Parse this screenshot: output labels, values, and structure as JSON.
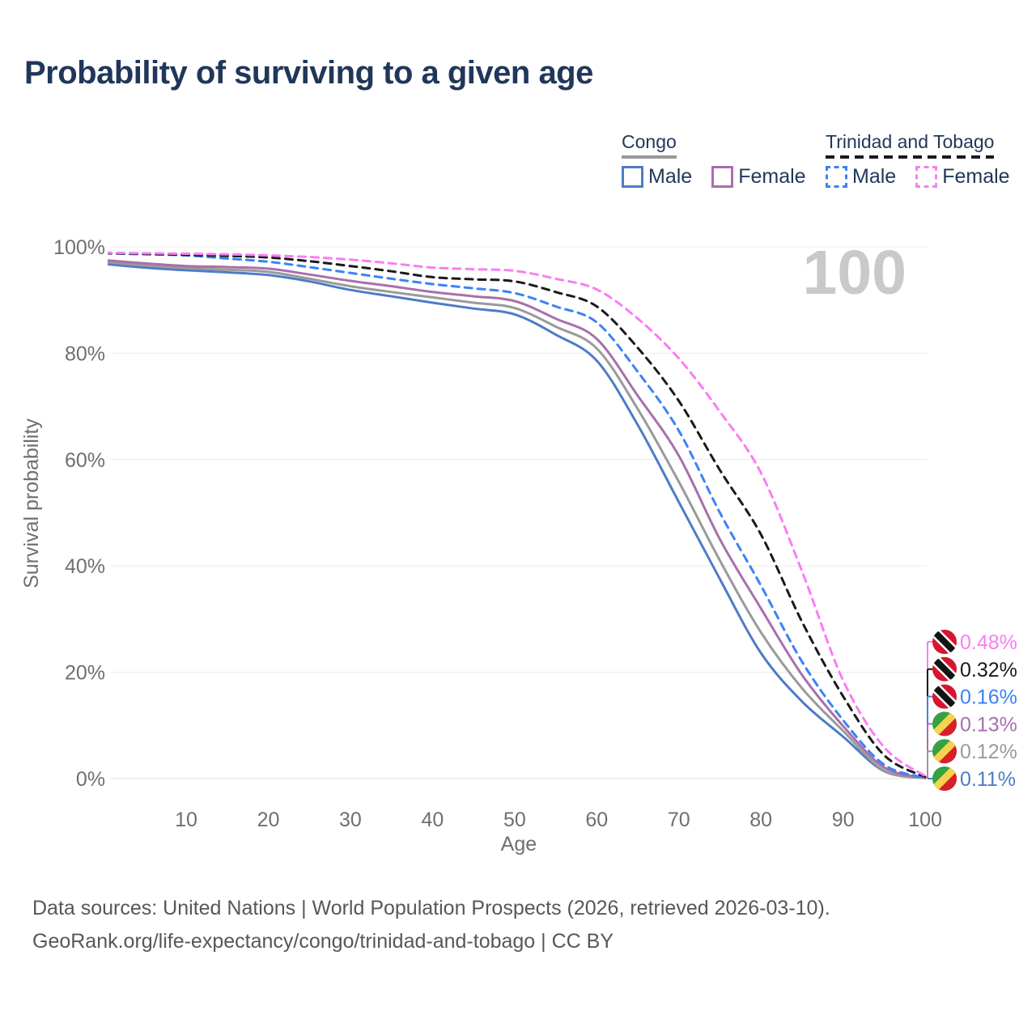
{
  "title": "Probability of surviving to a given age",
  "watermark": "100",
  "legend": {
    "groups": [
      {
        "name": "Congo",
        "line_style": "solid",
        "underline_color": "#9a9a9a",
        "items": [
          {
            "label": "Male",
            "color": "#4d7cc7"
          },
          {
            "label": "Female",
            "color": "#a86fae"
          }
        ]
      },
      {
        "name": "Trinidad and Tobago",
        "line_style": "dashed",
        "underline_color": "#1a1a1a",
        "items": [
          {
            "label": "Male",
            "color": "#3b82f6"
          },
          {
            "label": "Female",
            "color": "#fa7df2"
          }
        ]
      }
    ]
  },
  "axes": {
    "y_label": "Survival probability",
    "y_ticks": [
      "100%",
      "80%",
      "60%",
      "40%",
      "20%",
      "0%"
    ],
    "x_label": "Age",
    "x_ticks": [
      "10",
      "20",
      "30",
      "40",
      "50",
      "60",
      "70",
      "80",
      "90",
      "100"
    ],
    "x_tick_values": [
      10,
      20,
      30,
      40,
      50,
      60,
      70,
      80,
      90,
      100
    ]
  },
  "end_labels": [
    {
      "value": "0.48%",
      "color": "#fa7df2",
      "flag": "trinidad-and-tobago"
    },
    {
      "value": "0.32%",
      "color": "#1a1a1a",
      "flag": "trinidad-and-tobago"
    },
    {
      "value": "0.16%",
      "color": "#3b82f6",
      "flag": "trinidad-and-tobago"
    },
    {
      "value": "0.13%",
      "color": "#a86fae",
      "flag": "congo"
    },
    {
      "value": "0.12%",
      "color": "#9a9a9a",
      "flag": "congo"
    },
    {
      "value": "0.11%",
      "color": "#4d7cc7",
      "flag": "congo"
    }
  ],
  "footer": {
    "line1": "Data sources: United Nations | World Population Prospects (2026, retrieved 2026-03-10).",
    "line2": "GeoRank.org/life-expectancy/congo/trinidad-and-tobago | CC BY"
  },
  "colors": {
    "title": "#20375a",
    "axis_text": "#6f6f6f",
    "gridline": "#ececec",
    "watermark": "#c9c9c9",
    "footer_text": "#575757"
  },
  "chart_data": {
    "type": "line",
    "title": "Probability of surviving to a given age",
    "xlabel": "Age",
    "ylabel": "Survival probability",
    "xlim": [
      0,
      100
    ],
    "ylim": [
      0,
      100
    ],
    "grid": "horizontal",
    "legend_position": "top-right",
    "x": [
      0,
      5,
      10,
      15,
      20,
      25,
      30,
      35,
      40,
      45,
      50,
      55,
      60,
      65,
      70,
      75,
      80,
      85,
      90,
      95,
      100
    ],
    "series": [
      {
        "name": "Congo Male",
        "style": "solid",
        "color": "#4d7cc7",
        "end_label": "0.11%",
        "values": [
          96.8,
          96.1,
          95.6,
          95.2,
          94.7,
          93.5,
          91.9,
          90.7,
          89.5,
          88.4,
          87.3,
          83.5,
          78.6,
          66.5,
          52.0,
          37.5,
          23.6,
          14.5,
          7.9,
          1.4,
          0.11
        ]
      },
      {
        "name": "Congo",
        "style": "solid",
        "color": "#9a9a9a",
        "end_label": "0.12%",
        "values": [
          97.2,
          96.5,
          96.0,
          95.7,
          95.3,
          94.0,
          92.6,
          91.5,
          90.5,
          89.5,
          88.5,
          85.0,
          80.9,
          69.5,
          55.8,
          41.0,
          27.5,
          17.0,
          9.0,
          1.5,
          0.12
        ]
      },
      {
        "name": "Congo Female",
        "style": "solid",
        "color": "#a86fae",
        "end_label": "0.13%",
        "values": [
          97.5,
          96.9,
          96.4,
          96.2,
          95.9,
          94.8,
          93.6,
          92.6,
          91.5,
          90.7,
          89.8,
          86.5,
          82.7,
          72.0,
          60.7,
          45.0,
          32.0,
          19.5,
          9.9,
          2.1,
          0.13
        ]
      },
      {
        "name": "Trinidad and Tobago Male",
        "style": "dashed",
        "color": "#3b82f6",
        "end_label": "0.16%",
        "values": [
          98.8,
          98.6,
          98.4,
          97.8,
          97.2,
          96.2,
          95.1,
          94.0,
          93.0,
          92.2,
          91.3,
          88.8,
          85.8,
          76.5,
          65.4,
          50.0,
          36.3,
          22.0,
          11.0,
          2.6,
          0.16
        ]
      },
      {
        "name": "Trinidad and Tobago",
        "style": "dashed",
        "color": "#1a1a1a",
        "end_label": "0.32%",
        "values": [
          98.8,
          98.7,
          98.5,
          98.3,
          98.0,
          97.3,
          96.4,
          95.4,
          94.3,
          93.9,
          93.5,
          91.5,
          88.8,
          81.0,
          71.0,
          58.0,
          45.9,
          29.5,
          15.5,
          4.4,
          0.32
        ]
      },
      {
        "name": "Trinidad and Tobago Female",
        "style": "dashed",
        "color": "#fa7df2",
        "end_label": "0.48%",
        "values": [
          98.9,
          98.8,
          98.7,
          98.6,
          98.4,
          98.1,
          97.6,
          96.9,
          96.1,
          95.8,
          95.5,
          94.0,
          92.0,
          86.5,
          79.0,
          69.0,
          57.5,
          39.0,
          18.5,
          5.9,
          0.48
        ]
      }
    ]
  }
}
